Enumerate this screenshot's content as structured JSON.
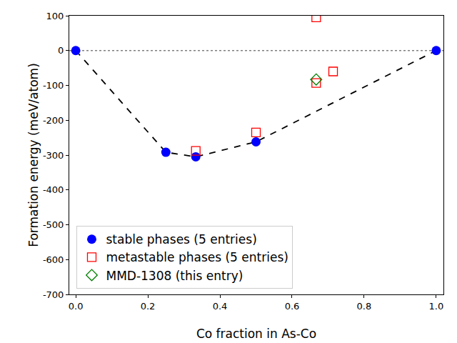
{
  "chart_data": {
    "type": "scatter",
    "x_label": "Co fraction in As-Co",
    "y_label": "Formation energy (meV/atom)",
    "xlim": [
      -0.018,
      1.02
    ],
    "xticks": [
      {
        "value": 0,
        "label": "0.0"
      },
      {
        "value": 0.2,
        "label": "0.2"
      },
      {
        "value": 0.4,
        "label": "0.4"
      },
      {
        "value": 0.6,
        "label": "0.6"
      },
      {
        "value": 0.8,
        "label": "0.8"
      },
      {
        "value": 1,
        "label": "1.0"
      }
    ],
    "ylim": [
      -700,
      100
    ],
    "yticks": [
      -700,
      -600,
      -500,
      -400,
      -300,
      -200,
      -100,
      0,
      100
    ],
    "grid": false,
    "legend": "lower left",
    "series": [
      {
        "name": "stable phases (5 entries)",
        "color": "#0000ff",
        "marker": "circle",
        "line_style": "dashed",
        "x": [
          0,
          0.25,
          0.333,
          0.5,
          1
        ],
        "values": [
          0,
          -292,
          -305,
          -262,
          0
        ]
      },
      {
        "name": "metastable phases (5 entries)",
        "color": "#ff0000",
        "marker": "square-open",
        "x": [
          0.333,
          0.5,
          0.667,
          0.667,
          0.714
        ],
        "values": [
          -288,
          -235,
          95,
          -93,
          -60
        ]
      },
      {
        "name": "MMD-1308 (this entry)",
        "color": "#008000",
        "marker": "diamond-open",
        "x": [
          0.667
        ],
        "values": [
          -83
        ]
      }
    ]
  }
}
